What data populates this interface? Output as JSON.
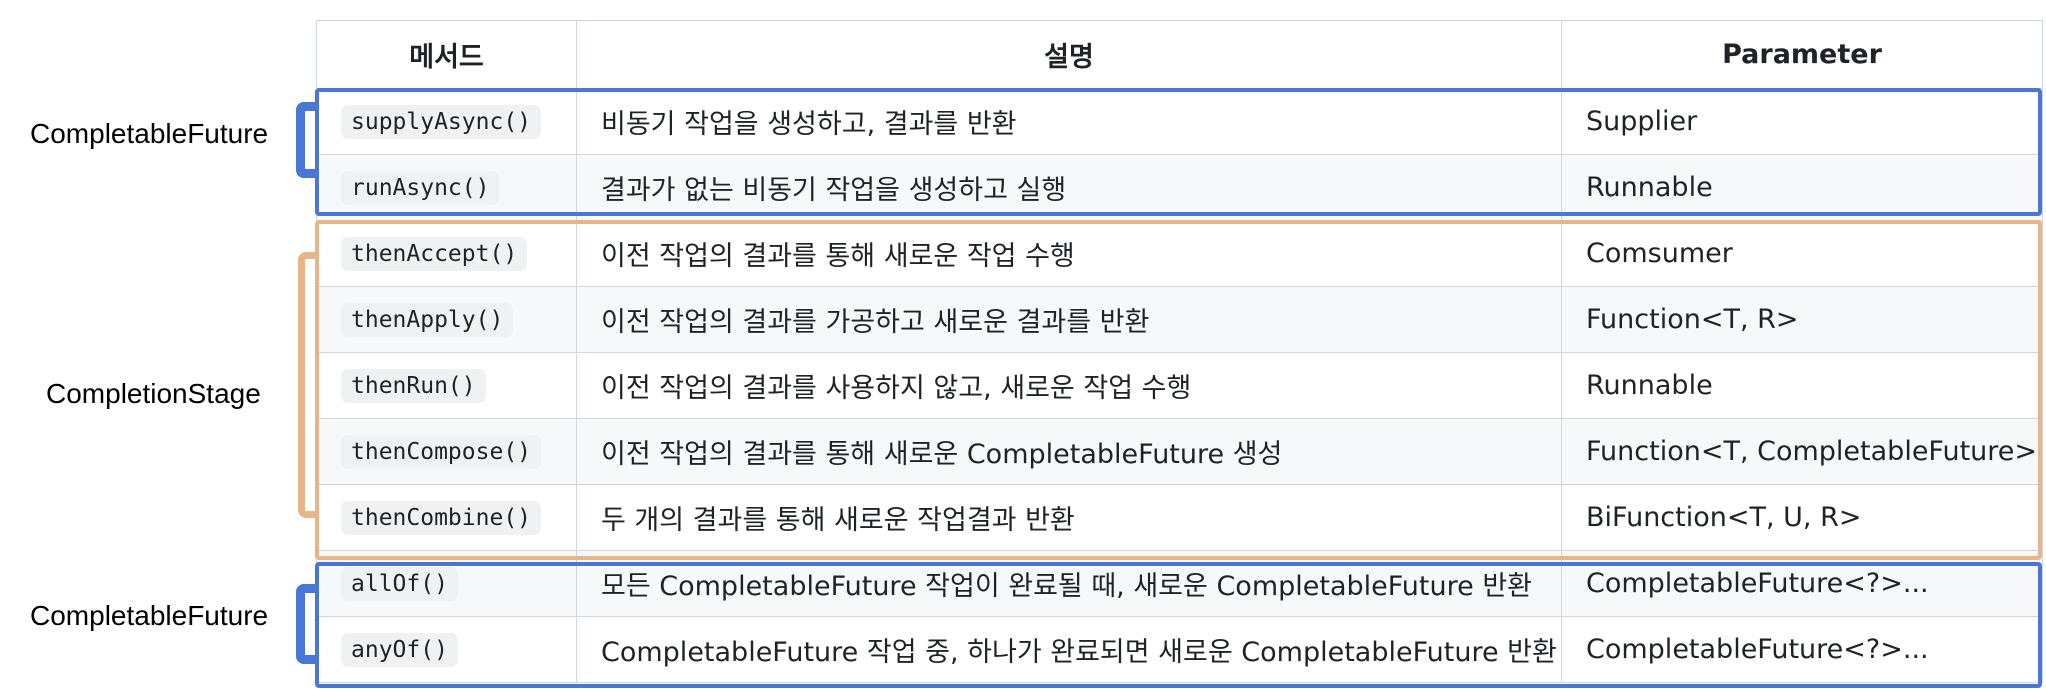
{
  "headers": {
    "method": "메서드",
    "description": "설명",
    "parameter": "Parameter"
  },
  "rows": [
    {
      "method": "supplyAsync()",
      "description": "비동기 작업을 생성하고, 결과를 반환",
      "parameter": "Supplier"
    },
    {
      "method": "runAsync()",
      "description": "결과가 없는 비동기 작업을 생성하고 실행",
      "parameter": "Runnable"
    },
    {
      "method": "thenAccept()",
      "description": "이전 작업의 결과를 통해 새로운 작업 수행",
      "parameter": "Comsumer"
    },
    {
      "method": "thenApply()",
      "description": "이전 작업의 결과를 가공하고 새로운 결과를 반환",
      "parameter": "Function<T, R>"
    },
    {
      "method": "thenRun()",
      "description": "이전 작업의 결과를 사용하지 않고, 새로운 작업 수행",
      "parameter": "Runnable"
    },
    {
      "method": "thenCompose()",
      "description": "이전 작업의 결과를 통해 새로운 CompletableFuture 생성",
      "parameter": "Function<T, CompletableFuture>"
    },
    {
      "method": "thenCombine()",
      "description": "두 개의 결과를 통해 새로운 작업결과 반환",
      "parameter": "BiFunction<T, U, R>"
    },
    {
      "method": "allOf()",
      "description": "모든 CompletableFuture 작업이 완료될 때, 새로운 CompletableFuture 반환",
      "parameter": "CompletableFuture<?>..."
    },
    {
      "method": "anyOf()",
      "description": "CompletableFuture 작업 중, 하나가 완료되면 새로운 CompletableFuture 반환",
      "parameter": "CompletableFuture<?>..."
    }
  ],
  "groups": [
    {
      "label": "CompletableFuture",
      "color": "#4a76d6"
    },
    {
      "label": "CompletionStage",
      "color": "#e8b48a"
    },
    {
      "label": "CompletableFuture",
      "color": "#4a76d6"
    }
  ]
}
